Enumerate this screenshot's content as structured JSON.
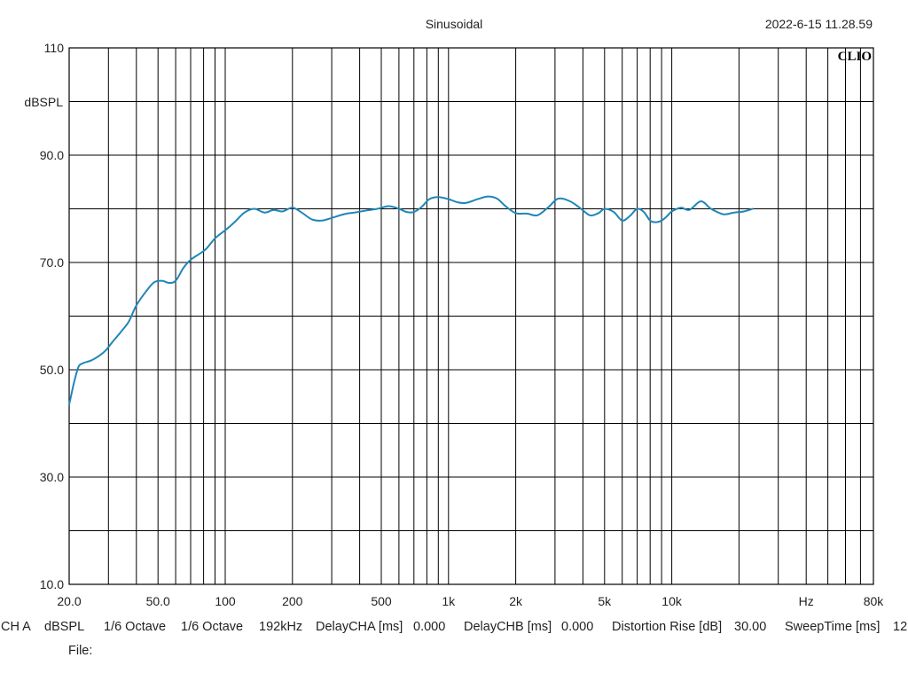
{
  "chart_data": {
    "type": "line",
    "title": "Sinusoidal",
    "timestamp": "2022-6-15 11.28.59",
    "brand": "CLIO",
    "ylabel": "dBSPL",
    "x_scale": "log",
    "xlim": [
      20,
      80000
    ],
    "ylim": [
      10,
      110
    ],
    "grid": true,
    "y_ticks": [
      {
        "value": 10,
        "label": "10.0"
      },
      {
        "value": 30,
        "label": "30.0"
      },
      {
        "value": 50,
        "label": "50.0"
      },
      {
        "value": 70,
        "label": "70.0"
      },
      {
        "value": 90,
        "label": "90.0"
      },
      {
        "value": 110,
        "label": "110"
      }
    ],
    "x_ticks": [
      {
        "value": 20,
        "label": "20.0"
      },
      {
        "value": 50,
        "label": "50.0"
      },
      {
        "value": 100,
        "label": "100"
      },
      {
        "value": 200,
        "label": "200"
      },
      {
        "value": 500,
        "label": "500"
      },
      {
        "value": 1000,
        "label": "1k"
      },
      {
        "value": 2000,
        "label": "2k"
      },
      {
        "value": 5000,
        "label": "5k"
      },
      {
        "value": 10000,
        "label": "10k"
      },
      {
        "value": 80000,
        "label": "80k"
      }
    ],
    "x_unit": {
      "value": 40000,
      "label": "Hz"
    },
    "series": [
      {
        "color": "#1f86b8",
        "x": [
          20,
          21,
          22,
          23,
          25,
          27,
          29,
          31,
          34,
          37,
          40,
          44,
          48,
          52,
          56,
          60,
          65,
          70,
          76,
          82,
          90,
          100,
          110,
          122,
          135,
          150,
          165,
          180,
          200,
          220,
          245,
          270,
          300,
          340,
          380,
          430,
          480,
          540,
          600,
          650,
          700,
          760,
          820,
          900,
          1000,
          1100,
          1200,
          1350,
          1500,
          1650,
          1800,
          2000,
          2250,
          2500,
          2800,
          3100,
          3500,
          3900,
          4300,
          4700,
          5000,
          5500,
          6000,
          6500,
          7000,
          7500,
          8000,
          8500,
          9000,
          9500,
          10000,
          11000,
          12000,
          13500,
          15000,
          17000,
          19000,
          21000,
          23000
        ],
        "y": [
          43.5,
          47.5,
          50.5,
          51.2,
          51.7,
          52.5,
          53.5,
          55,
          57,
          59,
          62,
          64.5,
          66.3,
          66.6,
          66.2,
          66.6,
          69,
          70.5,
          71.5,
          72.5,
          74.5,
          76,
          77.5,
          79.3,
          80,
          79.3,
          79.8,
          79.5,
          80.2,
          79.3,
          78,
          77.8,
          78.3,
          79,
          79.3,
          79.7,
          80,
          80.5,
          80,
          79.4,
          79.4,
          80.4,
          81.8,
          82.2,
          81.8,
          81.2,
          81.1,
          81.8,
          82.3,
          81.9,
          80.5,
          79.2,
          79.1,
          78.8,
          80.3,
          81.9,
          81.4,
          80.1,
          78.8,
          79.2,
          80,
          79.4,
          77.8,
          78.7,
          80,
          79.4,
          77.8,
          77.5,
          77.8,
          78.6,
          79.5,
          80.2,
          79.8,
          81.4,
          80,
          79,
          79.3,
          79.5,
          80
        ]
      }
    ]
  },
  "footer": {
    "channel": "CH A",
    "unit": "dBSPL",
    "smoothing_1": "1/6 Octave",
    "smoothing_2": "1/6 Octave",
    "sample_rate": "192kHz",
    "delay_cha_label": "DelayCHA [ms]",
    "delay_cha_value": "0.000",
    "delay_chb_label": "DelayCHB [ms]",
    "delay_chb_value": "0.000",
    "distortion_label": "Distortion Rise [dB]",
    "distortion_value": "30.00",
    "sweep_label": "SweepTime [ms]",
    "sweep_value": "12",
    "file_label": "File:"
  }
}
